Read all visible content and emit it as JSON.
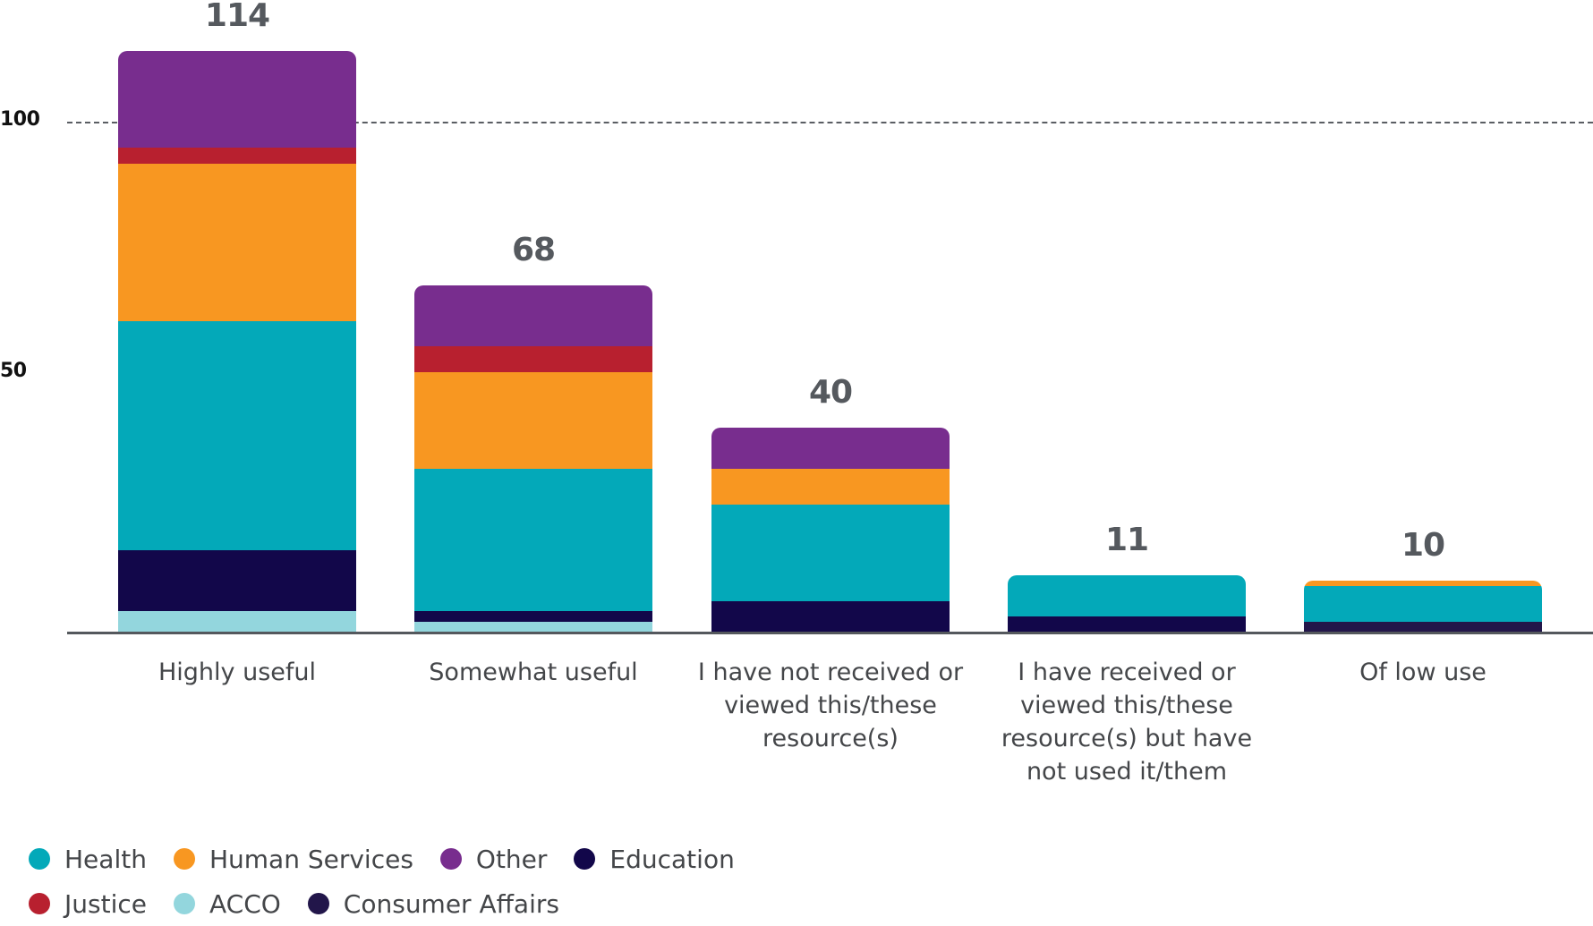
{
  "chart_data": {
    "type": "bar",
    "stacked": true,
    "title": "",
    "xlabel": "",
    "ylabel": "",
    "ylim": [
      0,
      114
    ],
    "yticks": [
      50,
      100
    ],
    "gridlines": [
      {
        "value": 100,
        "style": "dashed"
      }
    ],
    "categories": [
      "Highly useful",
      "Somewhat useful",
      "I have not received or viewed this/these resource(s)",
      "I have received or viewed this/these resource(s) but have not used it/them",
      "Of low use"
    ],
    "category_lines": [
      [
        "Highly useful"
      ],
      [
        "Somewhat useful"
      ],
      [
        "I have not received or",
        "viewed this/these",
        "resource(s)"
      ],
      [
        "I have received or",
        "viewed this/these",
        "resource(s) but have",
        "not used it/them"
      ],
      [
        "Of low use"
      ]
    ],
    "totals": [
      114,
      68,
      40,
      11,
      10
    ],
    "series": [
      {
        "name": "ACCO",
        "color": "#93d6dd",
        "values": [
          4,
          2,
          0,
          0,
          0
        ]
      },
      {
        "name": "Consumer Affairs",
        "color": "#22164a",
        "values": [
          0,
          0,
          0,
          0,
          2
        ]
      },
      {
        "name": "Education",
        "color": "#12074a",
        "values": [
          12,
          2,
          6,
          3,
          0
        ]
      },
      {
        "name": "Health",
        "color": "#03a9b9",
        "values": [
          45,
          28,
          19,
          8,
          7
        ]
      },
      {
        "name": "Human Services",
        "color": "#f89721",
        "values": [
          31,
          19,
          7,
          0,
          1
        ]
      },
      {
        "name": "Justice",
        "color": "#b8202f",
        "values": [
          3,
          5,
          0,
          0,
          0
        ]
      },
      {
        "name": "Other",
        "color": "#782d8e",
        "values": [
          19,
          12,
          8,
          0,
          0
        ]
      }
    ],
    "legend_position": "bottom-left"
  },
  "axis": {
    "ytick_labels": [
      {
        "value": 100,
        "label": "100"
      },
      {
        "value": 50,
        "label": "50"
      }
    ]
  },
  "legend": {
    "rows": [
      [
        {
          "label": "Health",
          "color": "#03a9b9"
        },
        {
          "label": "Human Services",
          "color": "#f89721"
        },
        {
          "label": "Other",
          "color": "#782d8e"
        },
        {
          "label": "Education",
          "color": "#12074a"
        }
      ],
      [
        {
          "label": "Justice",
          "color": "#b8202f"
        },
        {
          "label": "ACCO",
          "color": "#93d6dd"
        },
        {
          "label": "Consumer Affairs",
          "color": "#22164a"
        }
      ]
    ]
  }
}
